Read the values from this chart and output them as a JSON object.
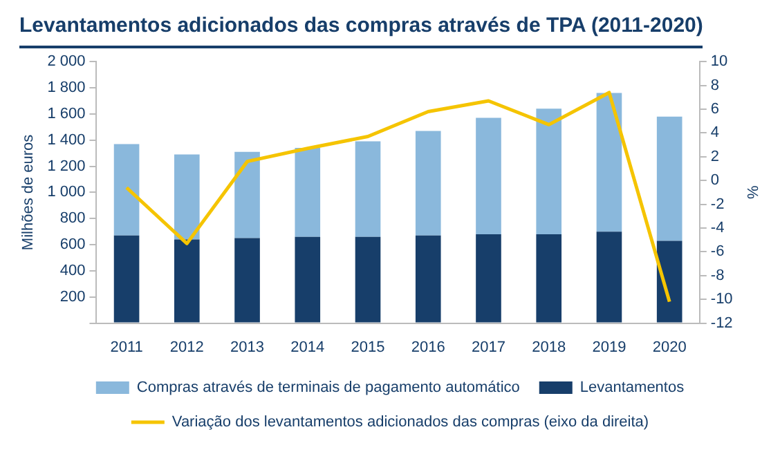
{
  "chart_data": {
    "type": "bar",
    "title": "Levantamentos adicionados das compras através de TPA (2011-2020)",
    "ylabel": "Milhões de euros",
    "y2label": "%",
    "categories": [
      "2011",
      "2012",
      "2013",
      "2014",
      "2015",
      "2016",
      "2017",
      "2018",
      "2019",
      "2020"
    ],
    "stacked": true,
    "series": [
      {
        "name": "Levantamentos",
        "color": "#173e6a",
        "values": [
          670,
          640,
          650,
          660,
          660,
          670,
          680,
          680,
          700,
          630
        ]
      },
      {
        "name": "Compras através de terminais de pagamento automático",
        "color": "#8ab8dc",
        "values": [
          700,
          650,
          660,
          680,
          730,
          800,
          890,
          960,
          1060,
          950
        ]
      },
      {
        "name": "Variação dos levantamentos adicionados das compras (eixo da direita)",
        "type": "line",
        "axis": "y2",
        "color": "#f5c400",
        "marker": "none",
        "values": [
          -0.6,
          -5.3,
          1.6,
          2.7,
          3.7,
          5.8,
          6.7,
          4.7,
          7.4,
          -10.2
        ]
      }
    ],
    "ylim": [
      0,
      2000
    ],
    "yticks": [
      {
        "value": 0,
        "label": null
      },
      200,
      400,
      600,
      800,
      {
        "value": 1000,
        "label": "1 000"
      },
      {
        "value": 1200,
        "label": "1 200"
      },
      {
        "value": 1400,
        "label": "1 400"
      },
      {
        "value": 1600,
        "label": "1 600"
      },
      {
        "value": 1800,
        "label": "1 800"
      },
      {
        "value": 2000,
        "label": "2 000"
      }
    ],
    "y2lim": [
      -12,
      10
    ],
    "y2ticks": [
      -12,
      -10,
      -8,
      -6,
      -4,
      -2,
      0,
      2,
      4,
      6,
      8,
      10
    ],
    "grid": false,
    "legend": "bottom"
  }
}
